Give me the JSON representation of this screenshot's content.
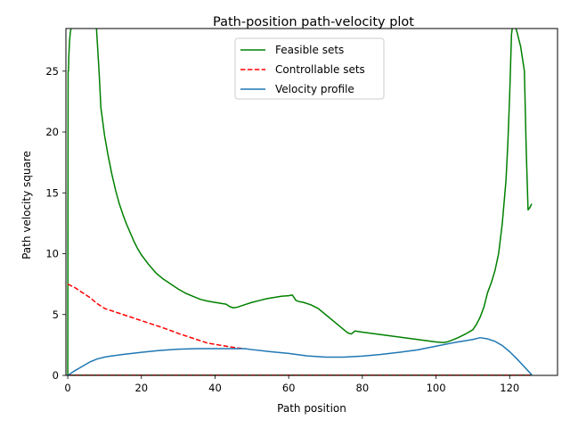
{
  "chart_data": {
    "type": "line",
    "title": "Path-position path-velocity plot",
    "xlabel": "Path position",
    "ylabel": "Path velocity square",
    "xlim": [
      -0.5,
      133
    ],
    "ylim": [
      0,
      28.5
    ],
    "xticks": [
      0,
      20,
      40,
      60,
      80,
      100,
      120
    ],
    "yticks": [
      0,
      5,
      10,
      15,
      20,
      25
    ],
    "grid": false,
    "legend_position": "top-center",
    "series": [
      {
        "name": "Feasible sets",
        "color": "#008000",
        "style": "solid",
        "segments": [
          {
            "x": [
              0,
              0.1,
              0.2,
              0.3,
              0.5,
              0.7,
              0.9
            ],
            "y": [
              0,
              25.0,
              25.0,
              26.3,
              27.5,
              28.2,
              28.5
            ]
          },
          {
            "x": [
              7.8,
              8.0,
              8.2,
              8.5,
              9,
              10,
              11,
              12,
              13,
              14,
              15,
              16,
              17,
              18,
              19,
              20,
              22,
              24,
              26,
              28,
              30,
              32,
              34,
              36,
              38,
              40,
              42,
              43,
              44,
              45,
              46,
              48,
              50,
              52,
              54,
              56,
              58,
              60,
              61,
              62,
              63,
              64,
              66,
              68,
              70,
              72,
              74,
              76,
              77,
              78,
              79,
              80,
              85,
              90,
              95,
              100,
              102,
              103,
              104,
              106,
              108,
              110,
              111,
              112,
              113,
              114,
              115,
              116,
              117,
              118,
              119,
              119.5,
              120,
              120.3,
              120.5,
              120.7
            ],
            "y": [
              28.5,
              27.5,
              26.5,
              25.0,
              22.0,
              19.7,
              18.0,
              16.5,
              15.2,
              14.1,
              13.2,
              12.4,
              11.7,
              11.0,
              10.4,
              9.9,
              9.1,
              8.4,
              7.9,
              7.5,
              7.1,
              6.75,
              6.5,
              6.25,
              6.1,
              6.0,
              5.9,
              5.85,
              5.65,
              5.55,
              5.6,
              5.8,
              6.0,
              6.15,
              6.3,
              6.4,
              6.5,
              6.55,
              6.6,
              6.15,
              6.05,
              6.0,
              5.8,
              5.5,
              5.0,
              4.5,
              4.0,
              3.5,
              3.4,
              3.65,
              3.6,
              3.55,
              3.35,
              3.15,
              2.95,
              2.75,
              2.7,
              2.75,
              2.85,
              3.1,
              3.4,
              3.75,
              4.2,
              4.8,
              5.6,
              6.8,
              7.6,
              8.6,
              10.0,
              12.5,
              16.0,
              19.0,
              23.0,
              26.0,
              28.0,
              28.5
            ]
          },
          {
            "x": [
              121.7,
              122,
              123,
              124,
              124.5,
              125,
              125.5,
              126
            ],
            "y": [
              28.5,
              28.2,
              27.0,
              25.0,
              18.5,
              13.6,
              13.8,
              14.1
            ]
          }
        ]
      },
      {
        "name": "",
        "color": "#008000",
        "style": "solid",
        "segments": [
          {
            "x": [
              0,
              126
            ],
            "y": [
              0.02,
              0.02
            ]
          }
        ]
      },
      {
        "name": "Controllable sets",
        "color": "#ff0000",
        "style": "dashed",
        "segments": [
          {
            "x": [
              0,
              2,
              4,
              6,
              8,
              10,
              14,
              18,
              22,
              26,
              30,
              34,
              38,
              42,
              46,
              48
            ],
            "y": [
              7.5,
              7.2,
              6.8,
              6.4,
              5.9,
              5.5,
              5.1,
              4.7,
              4.3,
              3.9,
              3.45,
              3.05,
              2.65,
              2.45,
              2.25,
              2.2
            ]
          }
        ]
      },
      {
        "name": "",
        "color": "#ff0000",
        "style": "dashed",
        "segments": [
          {
            "x": [
              0,
              126
            ],
            "y": [
              0.02,
              0.02
            ]
          }
        ]
      },
      {
        "name": "Velocity profile",
        "color": "#1f77b4",
        "style": "solid",
        "segments": [
          {
            "x": [
              0,
              2,
              4,
              6,
              8,
              10,
              12,
              15,
              20,
              25,
              30,
              35,
              40,
              45,
              48,
              50,
              55,
              60,
              65,
              70,
              75,
              80,
              85,
              90,
              95,
              100,
              105,
              110,
              112,
              114,
              116,
              118,
              120,
              122,
              124,
              126
            ],
            "y": [
              0,
              0.4,
              0.75,
              1.1,
              1.35,
              1.5,
              1.6,
              1.72,
              1.9,
              2.05,
              2.15,
              2.2,
              2.2,
              2.2,
              2.2,
              2.12,
              1.95,
              1.8,
              1.6,
              1.5,
              1.5,
              1.58,
              1.72,
              1.9,
              2.1,
              2.4,
              2.7,
              2.95,
              3.1,
              3.0,
              2.8,
              2.45,
              1.95,
              1.35,
              0.7,
              0.05
            ]
          }
        ]
      }
    ]
  }
}
